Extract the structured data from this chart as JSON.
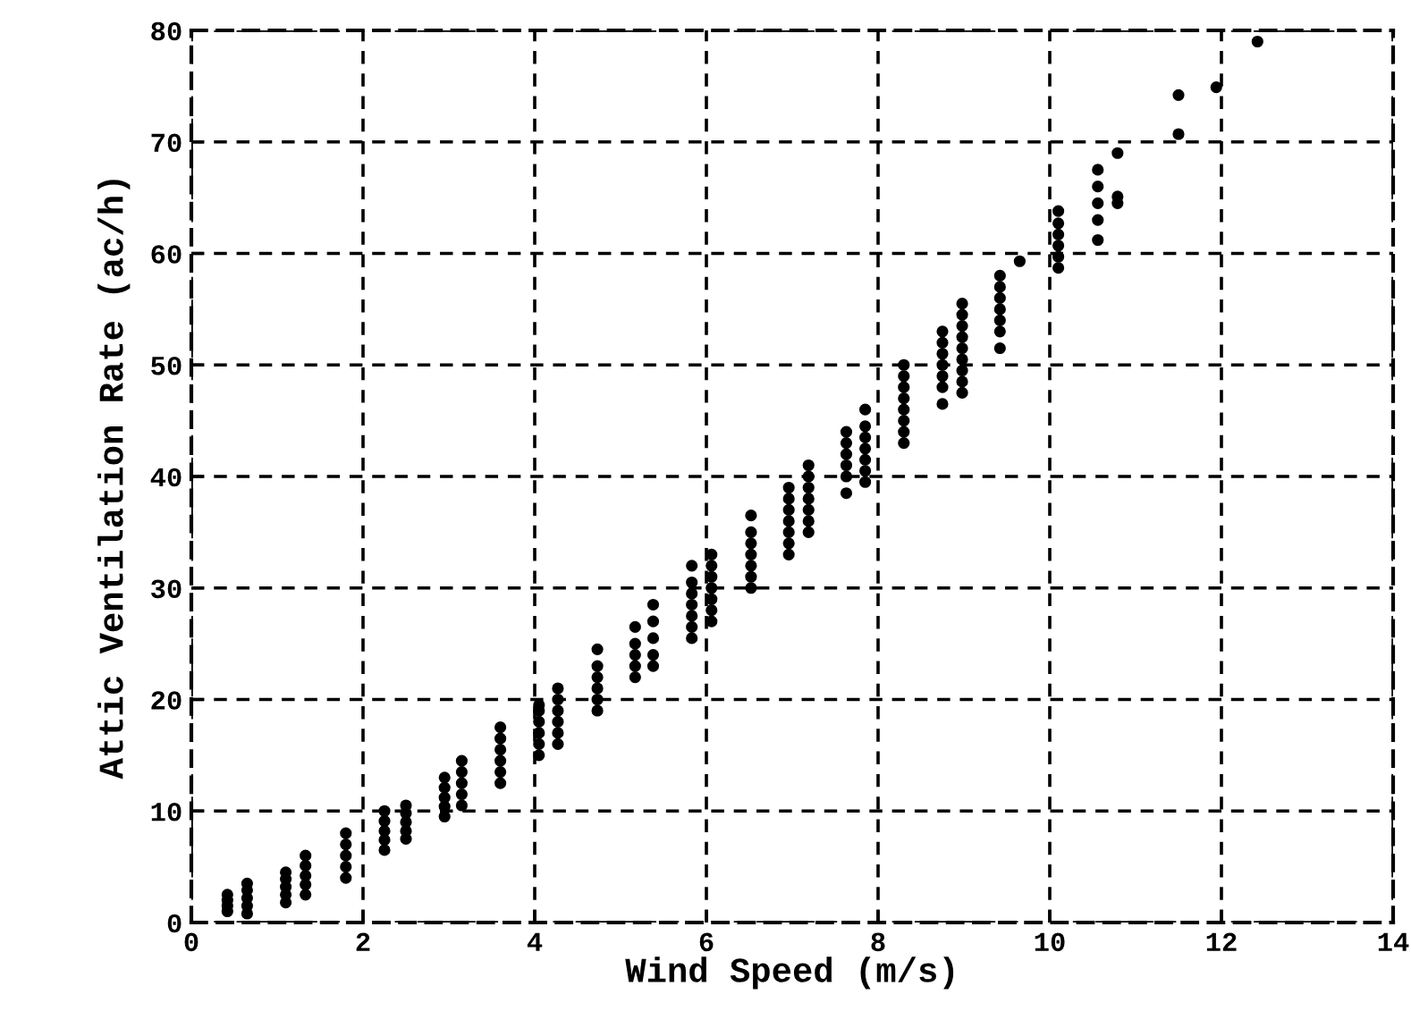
{
  "chart_data": {
    "type": "scatter",
    "xlabel": "Wind Speed (m/s)",
    "ylabel": "Attic Ventilation Rate (ac/h)",
    "xlim": [
      0,
      14
    ],
    "ylim": [
      0,
      80
    ],
    "xticks": [
      0,
      2,
      4,
      6,
      8,
      10,
      12,
      14
    ],
    "yticks": [
      0,
      10,
      20,
      30,
      40,
      50,
      60,
      70,
      80
    ],
    "grid": true,
    "marker": "circle",
    "series": [
      {
        "color": "#000000",
        "x": [
          0.42,
          0.42,
          0.42,
          0.42,
          0.65,
          0.65,
          0.65,
          0.65,
          0.65,
          1.1,
          1.1,
          1.1,
          1.1,
          1.1,
          1.33,
          1.33,
          1.33,
          1.33,
          1.33,
          1.8,
          1.8,
          1.8,
          1.8,
          1.8,
          2.25,
          2.25,
          2.25,
          2.25,
          2.25,
          2.5,
          2.5,
          2.5,
          2.5,
          2.5,
          2.95,
          2.95,
          2.95,
          2.95,
          2.95,
          3.15,
          3.15,
          3.15,
          3.15,
          3.15,
          3.6,
          3.6,
          3.6,
          3.6,
          3.6,
          3.6,
          4.05,
          4.05,
          4.05,
          4.05,
          4.05,
          4.05,
          4.27,
          4.27,
          4.27,
          4.27,
          4.27,
          4.27,
          4.73,
          4.73,
          4.73,
          4.73,
          4.73,
          4.73,
          5.17,
          5.17,
          5.17,
          5.17,
          5.17,
          5.38,
          5.38,
          5.38,
          5.38,
          5.38,
          5.83,
          5.83,
          5.83,
          5.83,
          5.83,
          5.83,
          5.83,
          6.06,
          6.06,
          6.06,
          6.06,
          6.06,
          6.06,
          6.06,
          6.52,
          6.52,
          6.52,
          6.52,
          6.52,
          6.52,
          6.52,
          6.96,
          6.96,
          6.96,
          6.96,
          6.96,
          6.96,
          6.96,
          7.19,
          7.19,
          7.19,
          7.19,
          7.19,
          7.19,
          7.19,
          7.63,
          7.63,
          7.63,
          7.63,
          7.63,
          7.63,
          7.85,
          7.85,
          7.85,
          7.85,
          7.85,
          7.85,
          7.85,
          8.3,
          8.3,
          8.3,
          8.3,
          8.3,
          8.3,
          8.3,
          8.3,
          8.75,
          8.75,
          8.75,
          8.75,
          8.75,
          8.75,
          8.75,
          8.98,
          8.98,
          8.98,
          8.98,
          8.98,
          8.98,
          8.98,
          8.98,
          8.98,
          9.42,
          9.42,
          9.42,
          9.42,
          9.42,
          9.42,
          9.42,
          9.65,
          10.1,
          10.1,
          10.1,
          10.1,
          10.1,
          10.1,
          10.56,
          10.56,
          10.56,
          10.56,
          10.56,
          10.79,
          10.79,
          10.79,
          11.5,
          11.5,
          11.94,
          12.42
        ],
        "values": [
          1.0,
          1.5,
          2.0,
          2.5,
          0.8,
          1.5,
          2.2,
          2.9,
          3.5,
          1.8,
          2.5,
          3.2,
          3.9,
          4.5,
          2.5,
          3.4,
          4.2,
          5.1,
          6.0,
          4.0,
          5.0,
          6.0,
          7.0,
          8.0,
          6.5,
          7.4,
          8.2,
          9.1,
          10.0,
          7.5,
          8.2,
          9.0,
          9.8,
          10.5,
          9.5,
          10.4,
          11.2,
          12.1,
          13.0,
          10.5,
          11.5,
          12.5,
          13.5,
          14.5,
          12.5,
          13.5,
          14.5,
          15.5,
          16.5,
          17.5,
          15.0,
          16.0,
          17.0,
          18.0,
          19.0,
          19.5,
          16.0,
          17.0,
          18.0,
          19.0,
          20.0,
          21.0,
          19.0,
          20.0,
          21.0,
          22.0,
          23.0,
          24.5,
          22.0,
          23.0,
          24.0,
          25.0,
          26.5,
          23.0,
          24.0,
          25.5,
          27.0,
          28.5,
          25.5,
          26.5,
          27.5,
          28.5,
          29.5,
          30.5,
          32.0,
          27.0,
          28.0,
          29.0,
          30.0,
          31.0,
          32.0,
          33.0,
          30.0,
          31.0,
          32.0,
          33.0,
          34.0,
          35.0,
          36.5,
          33.0,
          34.0,
          35.0,
          36.0,
          37.0,
          38.0,
          39.0,
          35.0,
          36.0,
          37.0,
          38.0,
          39.0,
          40.0,
          41.0,
          38.5,
          40.0,
          41.0,
          42.0,
          43.0,
          44.0,
          39.5,
          40.5,
          41.5,
          42.5,
          43.5,
          44.5,
          46.0,
          43.0,
          44.0,
          45.0,
          46.0,
          47.0,
          48.0,
          49.0,
          50.0,
          46.5,
          48.0,
          49.0,
          50.0,
          51.0,
          52.0,
          53.0,
          47.5,
          48.5,
          49.5,
          50.5,
          51.5,
          52.5,
          53.5,
          54.5,
          55.5,
          51.5,
          53.0,
          54.0,
          55.0,
          56.0,
          57.0,
          58.0,
          59.3,
          58.7,
          59.7,
          60.7,
          61.7,
          62.7,
          63.8,
          61.2,
          63.0,
          64.5,
          66.0,
          67.5,
          64.5,
          65.1,
          69.0,
          70.7,
          74.2,
          74.9,
          79.0
        ]
      }
    ]
  }
}
